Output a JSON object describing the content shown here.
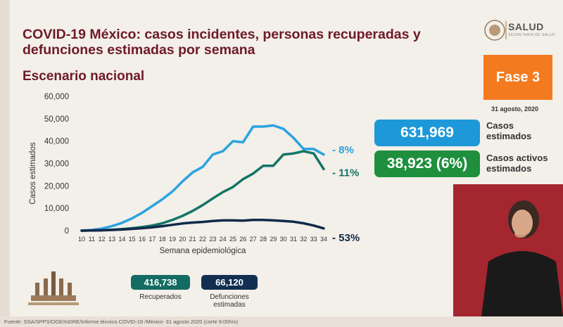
{
  "header": {
    "title": "COVID-19 México: casos incidentes, personas recuperadas y defunciones estimadas por semana",
    "subtitle": "Escenario nacional"
  },
  "logo": {
    "text": "SALUD",
    "subtext": "SECRETARÍA DE SALUD"
  },
  "phase": {
    "label": "Fase 3",
    "date": "31 agosto, 2020"
  },
  "metrics": [
    {
      "value": "631,969",
      "label_line1": "Casos",
      "label_line2": "estimados",
      "color": "#1d98d8"
    },
    {
      "value": "38,923 (6%)",
      "label_line1": "Casos activos",
      "label_line2": "estimados",
      "color": "#1f8f3d"
    }
  ],
  "totals": {
    "recovered_value": "416,738",
    "recovered_label": "Recuperados",
    "deaths_value": "66,120",
    "deaths_label_line1": "Defunciones",
    "deaths_label_line2": "estimadas"
  },
  "footer": {
    "source": "Fuente: SSA/SPPS/DGE/InDRE/Informe técnico.COVID-19 /México- 31 agosto 2020 (corte 9:00hrs)"
  },
  "chart_data": {
    "type": "line",
    "xlabel": "Semana epidemiológica",
    "ylabel": "Casos estimados",
    "ylim": [
      0,
      60000
    ],
    "yticks": [
      0,
      10000,
      20000,
      30000,
      40000,
      50000,
      60000
    ],
    "ytick_labels": [
      "0",
      "10,000",
      "20,000",
      "30,000",
      "40,000",
      "50,000",
      "60,000"
    ],
    "x": [
      10,
      11,
      12,
      13,
      14,
      15,
      16,
      17,
      18,
      19,
      20,
      21,
      22,
      23,
      24,
      25,
      26,
      27,
      28,
      29,
      30,
      31,
      32,
      33,
      34
    ],
    "series": [
      {
        "color": "#2aa3df",
        "values": [
          0,
          300,
          900,
          2000,
          3500,
          5500,
          8000,
          11000,
          14000,
          17500,
          22000,
          26000,
          28500,
          34000,
          35500,
          40000,
          39500,
          46500,
          46500,
          47000,
          45500,
          41500,
          36500,
          36500,
          34000
        ],
        "end_label": "- 8%"
      },
      {
        "color": "#137566",
        "values": [
          0,
          100,
          200,
          400,
          700,
          1100,
          1600,
          2300,
          3300,
          4800,
          6600,
          8800,
          11400,
          14400,
          17200,
          19500,
          23000,
          25500,
          29000,
          29000,
          34000,
          34500,
          35500,
          34500,
          27500
        ],
        "end_label": "- 11%"
      },
      {
        "color": "#10294a",
        "values": [
          0,
          100,
          150,
          300,
          500,
          800,
          1100,
          1500,
          2000,
          2600,
          3200,
          3600,
          3900,
          4300,
          4600,
          4600,
          4500,
          4800,
          4800,
          4600,
          4300,
          4000,
          3300,
          2300,
          1000
        ],
        "end_label": "- 53%"
      }
    ]
  }
}
